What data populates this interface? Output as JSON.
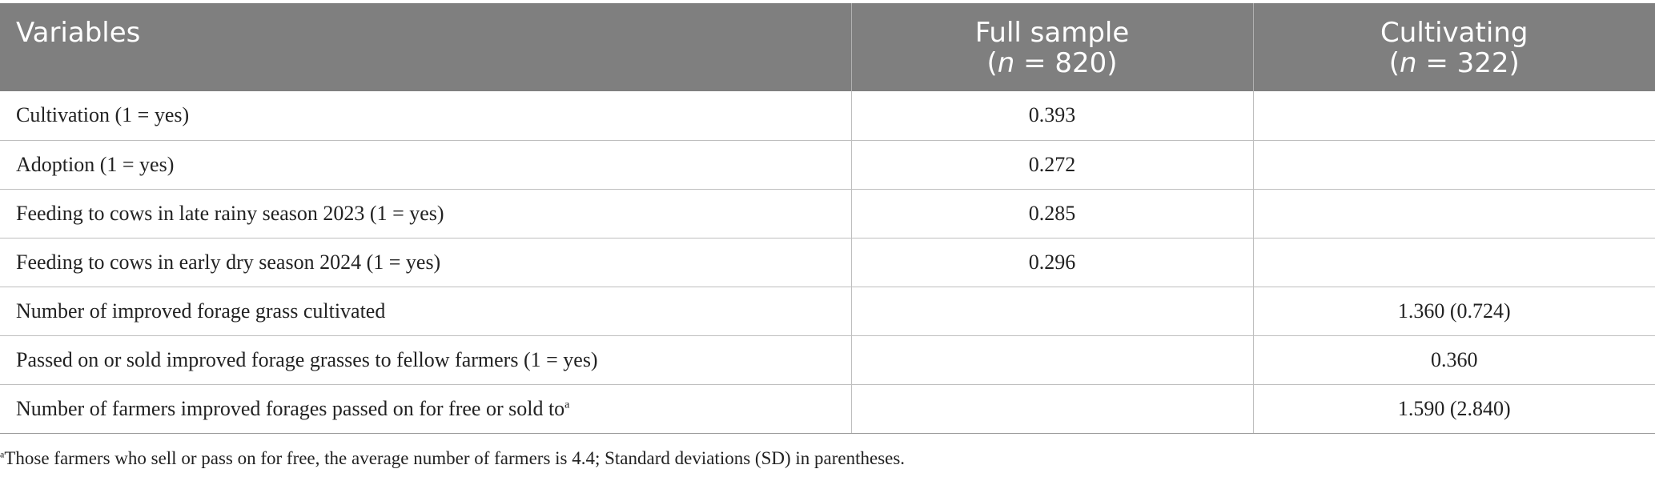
{
  "header": {
    "col1": "Variables",
    "col2_line1": "Full sample",
    "col2_n_prefix": "(",
    "col2_n_var": "n",
    "col2_n_value": " = 820)",
    "col3_line1": "Cultivating",
    "col3_n_prefix": "(",
    "col3_n_var": "n",
    "col3_n_value": " = 322)"
  },
  "rows": [
    {
      "variable": "Cultivation (1 = yes)",
      "full": "0.393",
      "cultivating": "",
      "sup": ""
    },
    {
      "variable": "Adoption (1 = yes)",
      "full": "0.272",
      "cultivating": "",
      "sup": ""
    },
    {
      "variable": "Feeding to cows in late rainy season 2023 (1 = yes)",
      "full": "0.285",
      "cultivating": "",
      "sup": ""
    },
    {
      "variable": "Feeding to cows in early dry season 2024 (1 = yes)",
      "full": "0.296",
      "cultivating": "",
      "sup": ""
    },
    {
      "variable": "Number of improved forage grass cultivated",
      "full": "",
      "cultivating": "1.360 (0.724)",
      "sup": ""
    },
    {
      "variable": "Passed on or sold improved forage grasses to fellow farmers (1 = yes)",
      "full": "",
      "cultivating": "0.360",
      "sup": ""
    },
    {
      "variable": "Number of farmers improved forages passed on for free or sold to",
      "full": "",
      "cultivating": "1.590 (2.840)",
      "sup": "a"
    }
  ],
  "footnote": {
    "marker": "a",
    "text": "Those farmers who sell or pass on for free, the average number of farmers is 4.4; Standard deviations (SD) in parentheses."
  },
  "colors": {
    "header_bg": "#7f7f7f",
    "header_text": "#ffffff",
    "grid": "#bfbfbf"
  }
}
